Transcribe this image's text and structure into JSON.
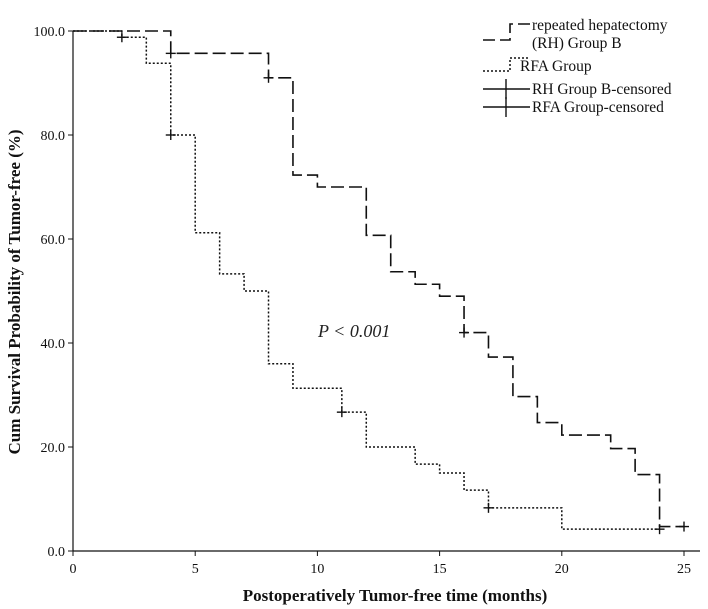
{
  "chart_data": {
    "type": "line",
    "title": "",
    "xlabel": "Postoperatively Tumor-free time (months)",
    "ylabel": "Cum Survival Probability of Tumor-free  (%)",
    "xlim": [
      0,
      26
    ],
    "ylim": [
      0,
      100
    ],
    "x_ticks": [
      0,
      5,
      10,
      15,
      20,
      25
    ],
    "y_ticks": [
      0,
      20,
      40,
      60,
      80,
      100
    ],
    "x_tick_labels": [
      "0",
      "5",
      "10",
      "15",
      "20",
      "25"
    ],
    "y_tick_labels": [
      "0.0",
      "20.0",
      "40.0",
      "60.0",
      "80.0",
      "100.0"
    ],
    "grid": false,
    "legend_position": "top-right",
    "legend": [
      "repeated hepatectomy (RH) Group B",
      "RFA Group",
      "RH Group B-censored",
      "RFA Group-censored"
    ],
    "annotation": "P < 0.001",
    "series": [
      {
        "name": "repeated hepatectomy (RH) Group B",
        "style": "long-dash",
        "color": "#111111",
        "steps": [
          [
            0,
            100
          ],
          [
            4,
            95.7
          ],
          [
            8,
            91
          ],
          [
            9,
            72.3
          ],
          [
            10,
            70
          ],
          [
            12,
            60.7
          ],
          [
            13,
            53.7
          ],
          [
            14,
            51.3
          ],
          [
            15,
            49
          ],
          [
            16,
            42
          ],
          [
            17,
            37.3
          ],
          [
            18,
            29.7
          ],
          [
            19,
            24.7
          ],
          [
            20,
            22.3
          ],
          [
            22,
            19.7
          ],
          [
            23,
            14.7
          ],
          [
            24,
            4.7
          ],
          [
            25,
            4.7
          ]
        ],
        "censored": [
          [
            4,
            95.7
          ],
          [
            8,
            91
          ],
          [
            16,
            42
          ],
          [
            25,
            4.7
          ]
        ]
      },
      {
        "name": "RFA Group",
        "style": "dotted",
        "color": "#111111",
        "steps": [
          [
            0,
            100
          ],
          [
            2,
            98.8
          ],
          [
            3,
            93.8
          ],
          [
            4,
            80
          ],
          [
            5,
            61.2
          ],
          [
            6,
            53.3
          ],
          [
            7,
            50
          ],
          [
            8,
            36
          ],
          [
            9,
            31.3
          ],
          [
            11,
            26.7
          ],
          [
            12,
            20
          ],
          [
            14,
            16.7
          ],
          [
            15,
            15
          ],
          [
            16,
            11.7
          ],
          [
            17,
            8.3
          ],
          [
            20,
            4.2
          ],
          [
            24,
            4.2
          ]
        ],
        "censored": [
          [
            2,
            98.8
          ],
          [
            4,
            80
          ],
          [
            11,
            26.7
          ],
          [
            17,
            8.3
          ],
          [
            24,
            4.2
          ]
        ]
      }
    ]
  }
}
